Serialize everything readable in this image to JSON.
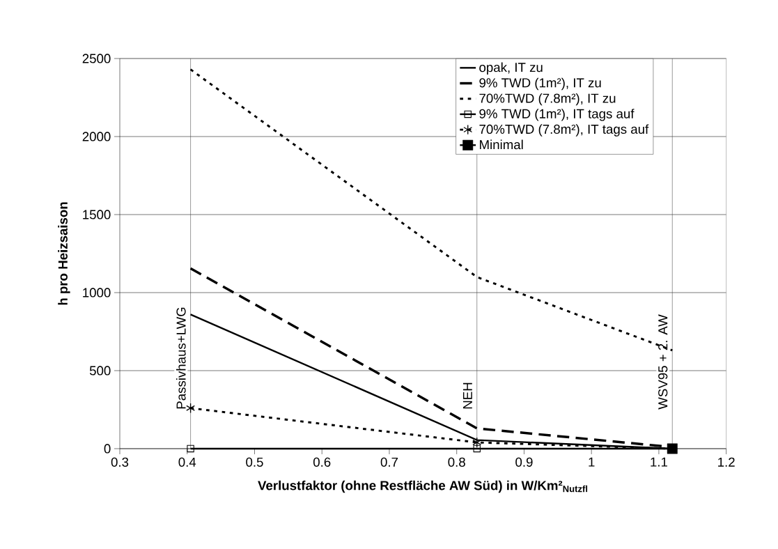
{
  "chart_data": {
    "type": "line",
    "xlabel": "Verlustfaktor (ohne Restfläche AW Süd) in W/Km²$_{Nutzfl}$",
    "ylabel": "h pro Heizsaison",
    "x": [
      0.405,
      0.83,
      1.12
    ],
    "series": [
      {
        "name": "opak, IT zu",
        "color": "#000000",
        "values": [
          860,
          55,
          0
        ],
        "line_style": "solid",
        "marker": "none"
      },
      {
        "name": "9% TWD (1m²), IT zu",
        "color": "#000000",
        "values": [
          1155,
          130,
          10
        ],
        "line_style": "dashed",
        "marker": "none"
      },
      {
        "name": "70%TWD (7.8m²), IT zu",
        "color": "#000000",
        "values": [
          2430,
          1100,
          630
        ],
        "line_style": "dotted",
        "marker": "none"
      },
      {
        "name": "9% TWD (1m²), IT tags auf",
        "color": "#000000",
        "values": [
          0,
          0,
          0
        ],
        "line_style": "solid",
        "marker": "square"
      },
      {
        "name": "70%TWD (7.8m²), IT tags auf",
        "color": "#000000",
        "values": [
          260,
          40,
          0
        ],
        "line_style": "dotted",
        "marker": "cross"
      },
      {
        "name": "Minimal",
        "color": "#000000",
        "values": [
          null,
          null,
          0
        ],
        "line_style": "solid",
        "marker": "square"
      }
    ],
    "xlim": [
      0.3,
      1.2
    ],
    "xticks": [
      0.3,
      0.4,
      0.5,
      0.6,
      0.7,
      0.8,
      0.9,
      1,
      1.1,
      1.2
    ],
    "ylim": [
      0,
      2500
    ],
    "yticks": [
      0,
      500,
      1000,
      1500,
      2000,
      2500
    ],
    "grid": "y",
    "legend": "top right",
    "ref_lines": [
      {
        "axis": "x",
        "value": 0.405,
        "label": "Passivhaus+LWG",
        "color": "#404040"
      },
      {
        "axis": "x",
        "value": 0.83,
        "label": "NEH",
        "color": "#404040"
      },
      {
        "axis": "x",
        "value": 1.12,
        "label": "WSV95 + 2. AW",
        "color": "#404040"
      }
    ]
  }
}
